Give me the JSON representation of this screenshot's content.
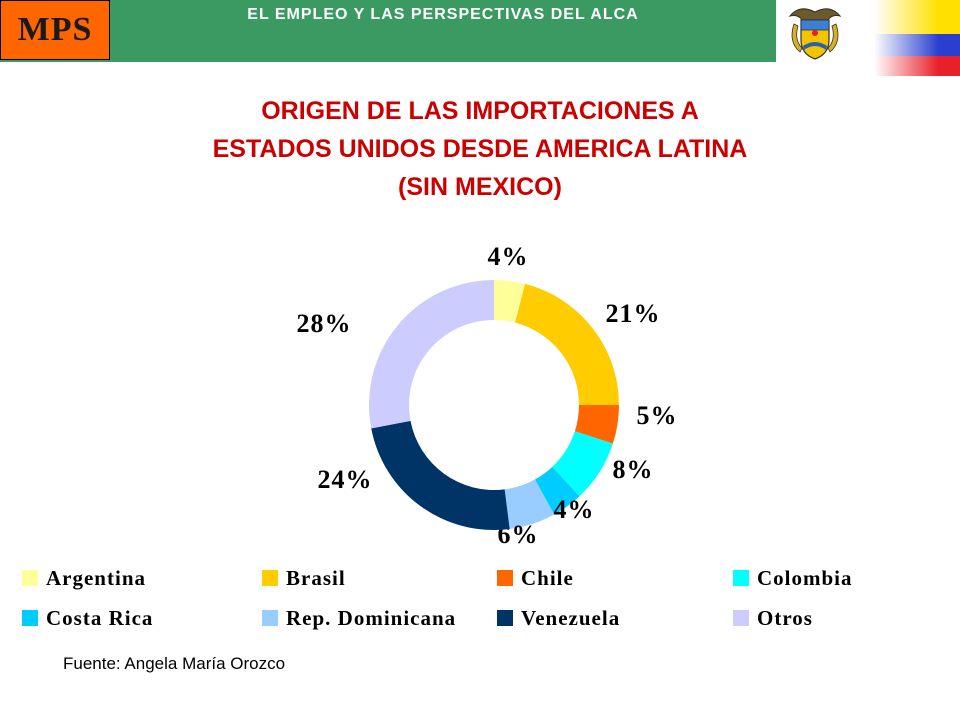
{
  "header": {
    "logo_text": "MPS",
    "title": "EL EMPLEO Y LAS PERSPECTIVAS DEL ALCA"
  },
  "icons": {
    "crest": "colombia-coat-of-arms-icon",
    "flag": "colombia-flag-icon"
  },
  "colors": {
    "header_green": "#3a9a62",
    "logo_orange": "#ff6600",
    "title_red": "#cc0000",
    "flag_yellow": "#ffe000",
    "flag_blue": "#2a3fd0",
    "flag_red": "#e8202a"
  },
  "chart_data": {
    "type": "pie",
    "variant": "donut",
    "title": [
      "ORIGEN DE LAS IMPORTACIONES A",
      "ESTADOS UNIDOS DESDE AMERICA LATINA",
      "(SIN MEXICO)"
    ],
    "categories": [
      "Argentina",
      "Brasil",
      "Chile",
      "Colombia",
      "Costa Rica",
      "Rep. Dominicana",
      "Venezuela",
      "Otros"
    ],
    "values": [
      4,
      21,
      5,
      8,
      4,
      6,
      24,
      28
    ],
    "labels": [
      "4%",
      "21%",
      "5%",
      "8%",
      "4%",
      "6%",
      "24%",
      "28%"
    ],
    "colors": [
      "#ffff99",
      "#ffcc00",
      "#ff6600",
      "#00ffff",
      "#00ccff",
      "#99ccff",
      "#003366",
      "#ccccff"
    ],
    "legend_position": "bottom"
  },
  "source": "Fuente: Angela María Orozco"
}
